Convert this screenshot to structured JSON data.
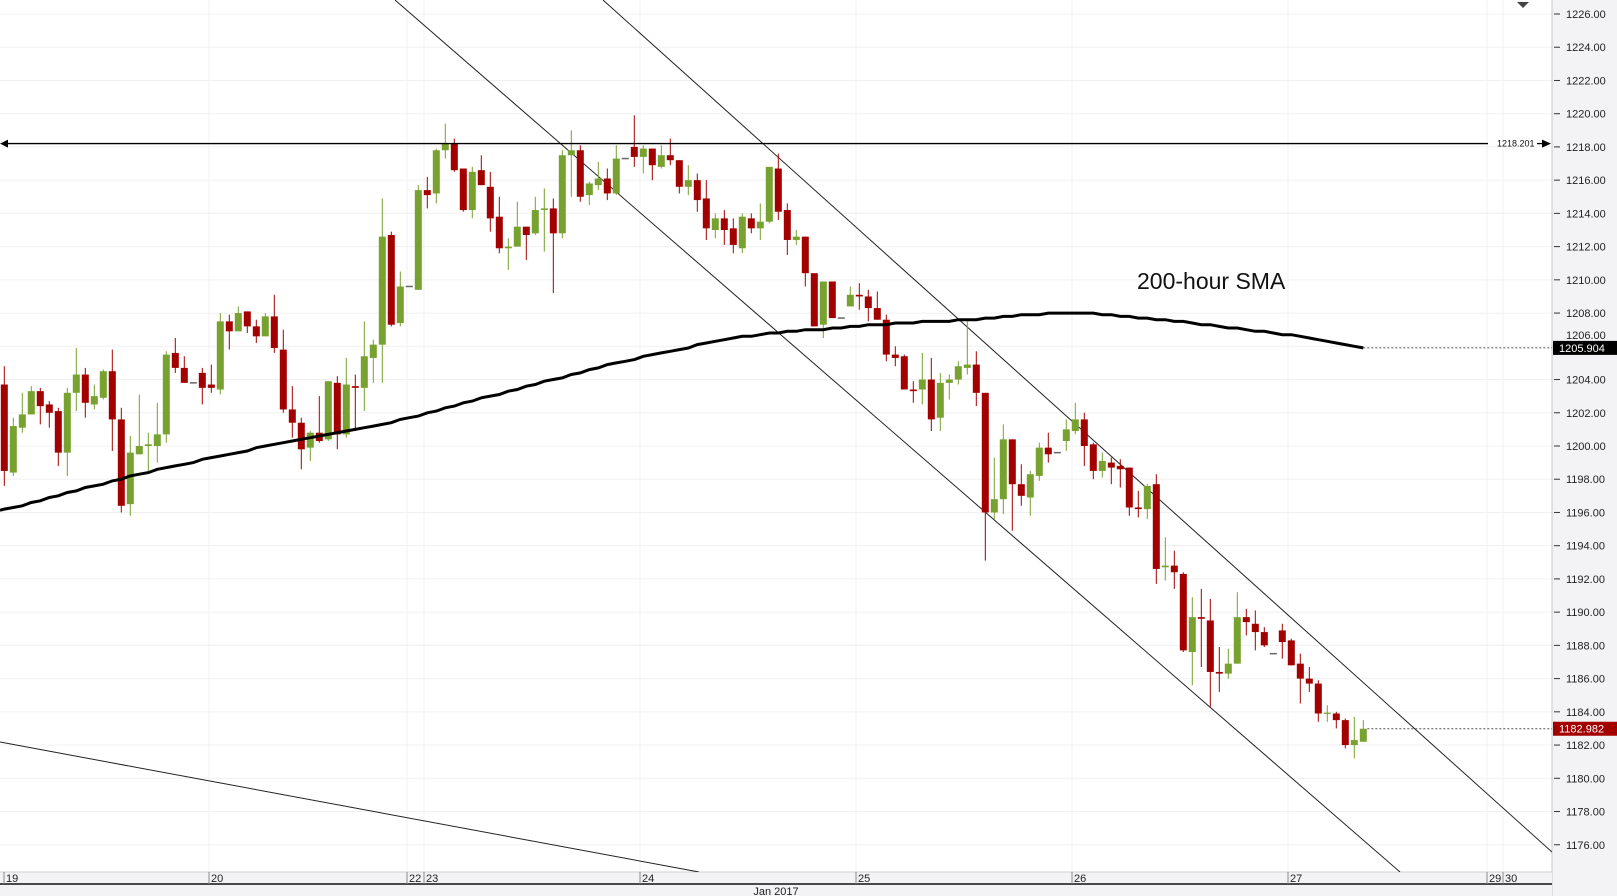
{
  "chart_data": {
    "type": "candlestick",
    "title": "",
    "annotation": "200-hour SMA",
    "ylim": [
      1175,
      1227
    ],
    "y_ticks": [
      "1176.00",
      "1178.00",
      "1180.00",
      "1182.00",
      "1184.00",
      "1186.00",
      "1188.00",
      "1190.00",
      "1192.00",
      "1194.00",
      "1196.00",
      "1198.00",
      "1200.00",
      "1202.00",
      "1204.00",
      "1206.00",
      "1208.00",
      "1210.00",
      "1212.00",
      "1214.00",
      "1216.00",
      "1218.00",
      "1220.00",
      "1222.00",
      "1224.00",
      "1226.00"
    ],
    "x_day_labels": [
      "19",
      "20",
      "22",
      "23",
      "24",
      "25",
      "26",
      "27",
      "29",
      "30"
    ],
    "x_month_label": "Jan 2017",
    "grid": true,
    "colors": {
      "up": "#77a22f",
      "down": "#a30000",
      "flat": "#666666",
      "sma": "#000000",
      "last_price_box": "#a30000",
      "sma_box": "#000000"
    },
    "horizontal_level": {
      "value": 1218.201,
      "label": "1218.201"
    },
    "last_price": {
      "value": 1182.982,
      "label": "1182.982"
    },
    "sma_last": {
      "value": 1205.904,
      "label": "1205.904"
    },
    "candles_ohlc": [
      [
        1203.7,
        1204.8,
        1197.6,
        1198.5
      ],
      [
        1198.4,
        1201.7,
        1198.2,
        1201.2
      ],
      [
        1201.1,
        1203.2,
        1200.8,
        1201.9
      ],
      [
        1201.9,
        1203.6,
        1201.9,
        1203.3
      ],
      [
        1203.3,
        1203.5,
        1201.3,
        1202.4
      ],
      [
        1202.5,
        1202.7,
        1201.1,
        1202.0
      ],
      [
        1202.1,
        1202.3,
        1198.8,
        1199.6
      ],
      [
        1199.6,
        1203.5,
        1198.2,
        1203.2
      ],
      [
        1203.2,
        1205.9,
        1202.1,
        1204.3
      ],
      [
        1204.3,
        1204.7,
        1201.7,
        1202.6
      ],
      [
        1202.5,
        1203.7,
        1202.2,
        1203.0
      ],
      [
        1202.9,
        1204.6,
        1202.8,
        1204.5
      ],
      [
        1204.5,
        1205.8,
        1199.7,
        1201.6
      ],
      [
        1201.6,
        1202.3,
        1196.0,
        1196.4
      ],
      [
        1196.5,
        1200.6,
        1195.8,
        1199.6
      ],
      [
        1199.5,
        1203.1,
        1199.5,
        1200.0
      ],
      [
        1200.0,
        1200.8,
        1198.5,
        1200.1
      ],
      [
        1200.0,
        1202.6,
        1199.0,
        1200.7
      ],
      [
        1200.7,
        1205.7,
        1200.2,
        1205.5
      ],
      [
        1205.6,
        1206.5,
        1204.4,
        1204.7
      ],
      [
        1204.7,
        1205.4,
        1203.8,
        1203.8
      ],
      [
        1203.8,
        1203.8,
        1203.8,
        1203.8
      ],
      [
        1204.4,
        1204.7,
        1202.5,
        1203.5
      ],
      [
        1203.7,
        1204.9,
        1203.2,
        1203.5
      ],
      [
        1203.4,
        1208.0,
        1203.1,
        1207.5
      ],
      [
        1207.5,
        1207.9,
        1205.8,
        1206.9
      ],
      [
        1206.9,
        1208.4,
        1206.9,
        1208.0
      ],
      [
        1208.1,
        1208.1,
        1206.8,
        1207.2
      ],
      [
        1207.2,
        1207.6,
        1206.2,
        1206.6
      ],
      [
        1206.6,
        1208.0,
        1206.6,
        1207.8
      ],
      [
        1207.8,
        1209.1,
        1205.6,
        1205.9
      ],
      [
        1205.8,
        1207.0,
        1202.0,
        1202.2
      ],
      [
        1202.2,
        1203.6,
        1200.5,
        1201.4
      ],
      [
        1201.4,
        1201.7,
        1198.6,
        1199.8
      ],
      [
        1199.9,
        1200.9,
        1199.1,
        1200.8
      ],
      [
        1200.8,
        1203.0,
        1200.2,
        1200.3
      ],
      [
        1200.4,
        1203.9,
        1200.3,
        1203.9
      ],
      [
        1203.8,
        1204.2,
        1199.8,
        1200.7
      ],
      [
        1200.7,
        1205.3,
        1200.5,
        1203.7
      ],
      [
        1203.6,
        1204.3,
        1200.9,
        1203.5
      ],
      [
        1203.5,
        1207.5,
        1202.1,
        1205.4
      ],
      [
        1205.3,
        1206.4,
        1203.8,
        1206.1
      ],
      [
        1206.1,
        1214.9,
        1203.8,
        1212.6
      ],
      [
        1212.7,
        1212.9,
        1207.2,
        1207.3
      ],
      [
        1207.4,
        1210.5,
        1207.2,
        1209.6
      ],
      [
        1209.6,
        1209.6,
        1209.6,
        1209.6
      ],
      [
        1209.4,
        1215.7,
        1209.4,
        1215.4
      ],
      [
        1215.4,
        1216.2,
        1214.3,
        1215.1
      ],
      [
        1215.2,
        1217.9,
        1214.6,
        1217.8
      ],
      [
        1217.8,
        1219.4,
        1217.3,
        1218.2
      ],
      [
        1218.2,
        1218.5,
        1216.5,
        1216.6
      ],
      [
        1216.7,
        1216.7,
        1214.1,
        1214.2
      ],
      [
        1214.2,
        1216.8,
        1213.7,
        1216.5
      ],
      [
        1216.6,
        1217.5,
        1215.7,
        1215.7
      ],
      [
        1215.6,
        1216.5,
        1212.9,
        1213.7
      ],
      [
        1213.8,
        1215.0,
        1211.6,
        1211.9
      ],
      [
        1211.9,
        1212.5,
        1210.6,
        1212.0
      ],
      [
        1212.0,
        1214.7,
        1212.0,
        1213.2
      ],
      [
        1213.2,
        1213.2,
        1211.2,
        1212.7
      ],
      [
        1212.8,
        1215.0,
        1212.7,
        1214.2
      ],
      [
        1214.2,
        1215.5,
        1211.7,
        1214.3
      ],
      [
        1214.3,
        1214.9,
        1209.2,
        1212.8
      ],
      [
        1212.8,
        1217.8,
        1212.5,
        1217.5
      ],
      [
        1217.5,
        1219.0,
        1215.0,
        1217.8
      ],
      [
        1217.8,
        1218.1,
        1214.7,
        1215.0
      ],
      [
        1215.1,
        1215.9,
        1214.5,
        1215.8
      ],
      [
        1215.7,
        1217.1,
        1215.4,
        1216.1
      ],
      [
        1216.1,
        1216.7,
        1214.8,
        1215.2
      ],
      [
        1215.2,
        1218.1,
        1215.1,
        1217.3
      ],
      [
        1217.3,
        1217.3,
        1217.3,
        1217.3
      ],
      [
        1218.0,
        1219.9,
        1216.8,
        1217.4
      ],
      [
        1217.4,
        1218.1,
        1216.4,
        1217.9
      ],
      [
        1217.9,
        1217.9,
        1216.0,
        1216.9
      ],
      [
        1216.8,
        1218.1,
        1216.7,
        1217.5
      ],
      [
        1217.5,
        1218.5,
        1216.9,
        1217.2
      ],
      [
        1217.2,
        1217.2,
        1215.2,
        1215.6
      ],
      [
        1215.6,
        1216.9,
        1215.1,
        1216.0
      ],
      [
        1216.0,
        1216.4,
        1214.1,
        1214.8
      ],
      [
        1214.9,
        1216.0,
        1212.4,
        1213.1
      ],
      [
        1213.0,
        1214.0,
        1212.5,
        1213.7
      ],
      [
        1213.7,
        1214.2,
        1212.1,
        1213.0
      ],
      [
        1213.1,
        1213.7,
        1211.6,
        1212.1
      ],
      [
        1211.9,
        1214.0,
        1211.6,
        1213.8
      ],
      [
        1213.7,
        1214.0,
        1212.8,
        1213.1
      ],
      [
        1213.1,
        1214.6,
        1212.4,
        1213.5
      ],
      [
        1213.5,
        1216.8,
        1213.4,
        1216.8
      ],
      [
        1216.7,
        1217.6,
        1213.6,
        1214.1
      ],
      [
        1214.2,
        1214.6,
        1211.5,
        1212.4
      ],
      [
        1212.4,
        1213.0,
        1212.1,
        1212.6
      ],
      [
        1212.6,
        1212.6,
        1209.6,
        1210.4
      ],
      [
        1210.4,
        1210.4,
        1207.2,
        1207.2
      ],
      [
        1207.3,
        1209.9,
        1206.5,
        1209.9
      ],
      [
        1209.9,
        1209.9,
        1207.7,
        1207.7
      ],
      [
        1207.7,
        1207.7,
        1207.7,
        1207.7
      ],
      [
        1208.4,
        1209.6,
        1208.4,
        1209.1
      ],
      [
        1209.1,
        1209.8,
        1208.2,
        1209.0
      ],
      [
        1209.0,
        1209.4,
        1207.5,
        1208.3
      ],
      [
        1208.3,
        1209.3,
        1207.6,
        1207.6
      ],
      [
        1207.6,
        1207.9,
        1205.1,
        1205.5
      ],
      [
        1205.5,
        1206.0,
        1204.8,
        1205.3
      ],
      [
        1205.4,
        1205.5,
        1203.4,
        1203.4
      ],
      [
        1203.4,
        1203.9,
        1202.6,
        1203.3
      ],
      [
        1203.4,
        1205.6,
        1202.5,
        1204.0
      ],
      [
        1204.0,
        1205.3,
        1200.9,
        1201.6
      ],
      [
        1201.7,
        1204.4,
        1200.9,
        1203.8
      ],
      [
        1203.8,
        1204.3,
        1202.8,
        1204.0
      ],
      [
        1204.0,
        1205.1,
        1203.7,
        1204.8
      ],
      [
        1204.7,
        1207.5,
        1204.3,
        1204.9
      ],
      [
        1204.9,
        1205.7,
        1202.4,
        1203.2
      ],
      [
        1203.2,
        1203.2,
        1193.1,
        1196.0
      ],
      [
        1196.0,
        1199.3,
        1195.6,
        1196.8
      ],
      [
        1196.8,
        1201.3,
        1195.9,
        1200.4
      ],
      [
        1200.4,
        1200.4,
        1194.9,
        1197.7
      ],
      [
        1197.7,
        1198.9,
        1196.4,
        1197.0
      ],
      [
        1196.9,
        1198.5,
        1195.8,
        1198.3
      ],
      [
        1198.2,
        1200.2,
        1197.9,
        1199.9
      ],
      [
        1199.9,
        1200.8,
        1199.0,
        1199.5
      ],
      [
        1199.6,
        1199.6,
        1199.6,
        1199.6
      ],
      [
        1200.3,
        1201.6,
        1199.7,
        1201.0
      ],
      [
        1200.9,
        1202.6,
        1200.7,
        1201.6
      ],
      [
        1201.6,
        1202.0,
        1198.8,
        1200.0
      ],
      [
        1200.1,
        1200.2,
        1198.0,
        1198.5
      ],
      [
        1198.5,
        1199.6,
        1198.1,
        1199.1
      ],
      [
        1199.0,
        1199.3,
        1197.7,
        1198.7
      ],
      [
        1198.8,
        1199.2,
        1197.5,
        1198.6
      ],
      [
        1198.7,
        1198.7,
        1195.8,
        1196.3
      ],
      [
        1196.3,
        1197.3,
        1195.7,
        1196.2
      ],
      [
        1196.2,
        1197.7,
        1195.6,
        1197.6
      ],
      [
        1197.7,
        1198.3,
        1191.7,
        1192.6
      ],
      [
        1192.7,
        1194.5,
        1191.9,
        1192.8
      ],
      [
        1192.8,
        1193.7,
        1191.4,
        1192.4
      ],
      [
        1192.3,
        1192.4,
        1187.6,
        1187.7
      ],
      [
        1187.6,
        1190.9,
        1185.6,
        1189.7
      ],
      [
        1189.7,
        1191.4,
        1186.7,
        1189.6
      ],
      [
        1189.5,
        1190.8,
        1184.3,
        1186.4
      ],
      [
        1186.4,
        1187.9,
        1185.2,
        1186.3
      ],
      [
        1186.3,
        1187.8,
        1186.0,
        1186.9
      ],
      [
        1186.9,
        1191.2,
        1186.9,
        1189.7
      ],
      [
        1189.7,
        1190.2,
        1188.6,
        1189.4
      ],
      [
        1189.3,
        1190.1,
        1187.7,
        1188.8
      ],
      [
        1188.8,
        1189.1,
        1187.9,
        1188.0
      ],
      [
        1187.5,
        1187.5,
        1187.5,
        1187.5
      ],
      [
        1188.9,
        1189.3,
        1187.2,
        1188.2
      ],
      [
        1188.3,
        1188.4,
        1186.8,
        1186.8
      ],
      [
        1186.9,
        1187.5,
        1184.5,
        1186.0
      ],
      [
        1186.0,
        1186.7,
        1185.2,
        1185.7
      ],
      [
        1185.7,
        1185.9,
        1183.4,
        1183.9
      ],
      [
        1183.9,
        1184.4,
        1183.4,
        1183.95
      ],
      [
        1183.9,
        1184.0,
        1183.0,
        1183.5
      ],
      [
        1183.5,
        1183.6,
        1181.8,
        1182.0
      ],
      [
        1182.0,
        1183.7,
        1181.2,
        1182.3
      ],
      [
        1182.2,
        1183.5,
        1182.2,
        1182.982
      ]
    ],
    "sma_200": [
      1196.2,
      1196.3,
      1196.4,
      1196.6,
      1196.7,
      1196.9,
      1197.0,
      1197.2,
      1197.3,
      1197.5,
      1197.6,
      1197.7,
      1197.9,
      1198.0,
      1198.2,
      1198.3,
      1198.4,
      1198.6,
      1198.7,
      1198.8,
      1198.9,
      1199.0,
      1199.2,
      1199.3,
      1199.4,
      1199.5,
      1199.6,
      1199.7,
      1199.9,
      1200.0,
      1200.1,
      1200.2,
      1200.3,
      1200.4,
      1200.5,
      1200.6,
      1200.7,
      1200.8,
      1200.9,
      1201.0,
      1201.1,
      1201.2,
      1201.3,
      1201.4,
      1201.6,
      1201.7,
      1201.8,
      1202.0,
      1202.1,
      1202.3,
      1202.4,
      1202.6,
      1202.7,
      1202.9,
      1203.0,
      1203.1,
      1203.3,
      1203.4,
      1203.6,
      1203.7,
      1203.9,
      1204.0,
      1204.1,
      1204.3,
      1204.4,
      1204.6,
      1204.7,
      1204.9,
      1205.0,
      1205.1,
      1205.2,
      1205.4,
      1205.5,
      1205.6,
      1205.7,
      1205.8,
      1205.9,
      1206.1,
      1206.2,
      1206.3,
      1206.4,
      1206.5,
      1206.6,
      1206.6,
      1206.7,
      1206.8,
      1206.8,
      1206.9,
      1206.9,
      1207.0,
      1207.0,
      1207.0,
      1207.1,
      1207.1,
      1207.2,
      1207.2,
      1207.3,
      1207.3,
      1207.3,
      1207.4,
      1207.4,
      1207.4,
      1207.5,
      1207.5,
      1207.5,
      1207.5,
      1207.6,
      1207.6,
      1207.6,
      1207.7,
      1207.7,
      1207.8,
      1207.8,
      1207.9,
      1207.9,
      1207.9,
      1208.0,
      1208.0,
      1208.0,
      1208.0,
      1208.0,
      1208.0,
      1207.9,
      1207.9,
      1207.8,
      1207.8,
      1207.7,
      1207.7,
      1207.6,
      1207.6,
      1207.5,
      1207.5,
      1207.4,
      1207.3,
      1207.3,
      1207.2,
      1207.1,
      1207.1,
      1207.0,
      1206.9,
      1206.9,
      1206.8,
      1206.7,
      1206.7,
      1206.6,
      1206.5,
      1206.4,
      1206.3,
      1206.2,
      1206.1,
      1206.0,
      1205.904
    ]
  }
}
